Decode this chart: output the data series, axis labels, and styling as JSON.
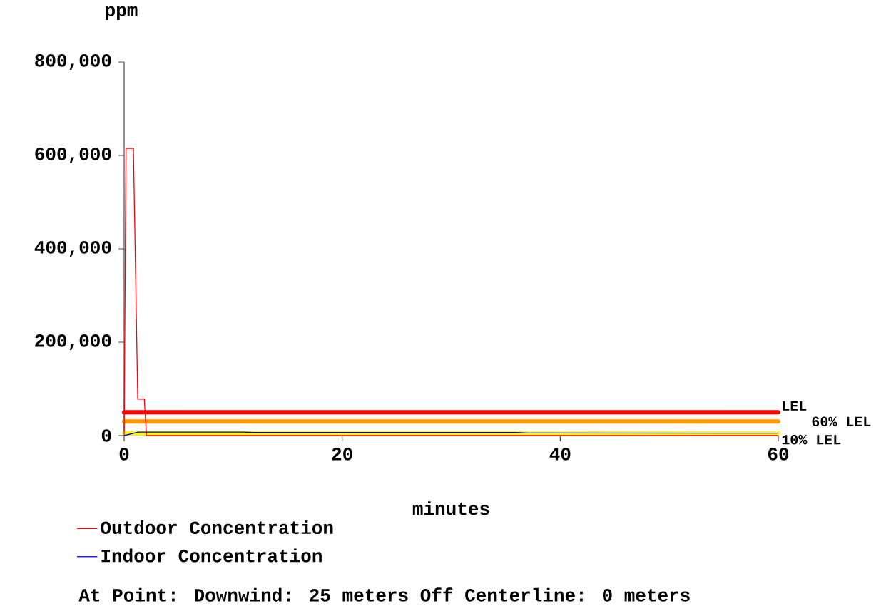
{
  "chart_data": {
    "type": "line",
    "xlabel": "minutes",
    "ylabel": "ppm",
    "xlim": [
      0,
      60
    ],
    "xticks": [
      0,
      20,
      40,
      60
    ],
    "ylim": [
      0,
      800000
    ],
    "yticks": [
      0,
      {
        "value": 200000,
        "label": "200,000"
      },
      {
        "value": 400000,
        "label": "400,000"
      },
      {
        "value": 600000,
        "label": "600,000"
      },
      {
        "value": 800000,
        "label": "800,000"
      }
    ],
    "series": [
      {
        "name": "Outdoor Concentration",
        "color": "#ff0000",
        "x": [
          0,
          0.17,
          0.85,
          1.25,
          1.85,
          2.05,
          60
        ],
        "values": [
          0,
          615000,
          615000,
          78000,
          78000,
          0,
          0
        ]
      },
      {
        "name": "Indoor Concentration",
        "color": "#0000ff",
        "x": [
          0,
          1.3,
          11,
          12,
          36,
          37,
          60
        ],
        "values": [
          0,
          7500,
          7500,
          6500,
          6500,
          5500,
          5000
        ]
      }
    ],
    "ref_lines": [
      {
        "axis": "y",
        "value": 50000,
        "label": "LEL",
        "color": "#ff0000"
      },
      {
        "axis": "y",
        "value": 30000,
        "label": "60% LEL",
        "color": "#ff9900"
      },
      {
        "axis": "y",
        "value": 5000,
        "label": "10% LEL",
        "color": "#ffff00"
      }
    ],
    "legend": "bottom",
    "annotations": [
      "At Point:   Downwind: 25 meters   Off Centerline: 0 meters"
    ]
  }
}
